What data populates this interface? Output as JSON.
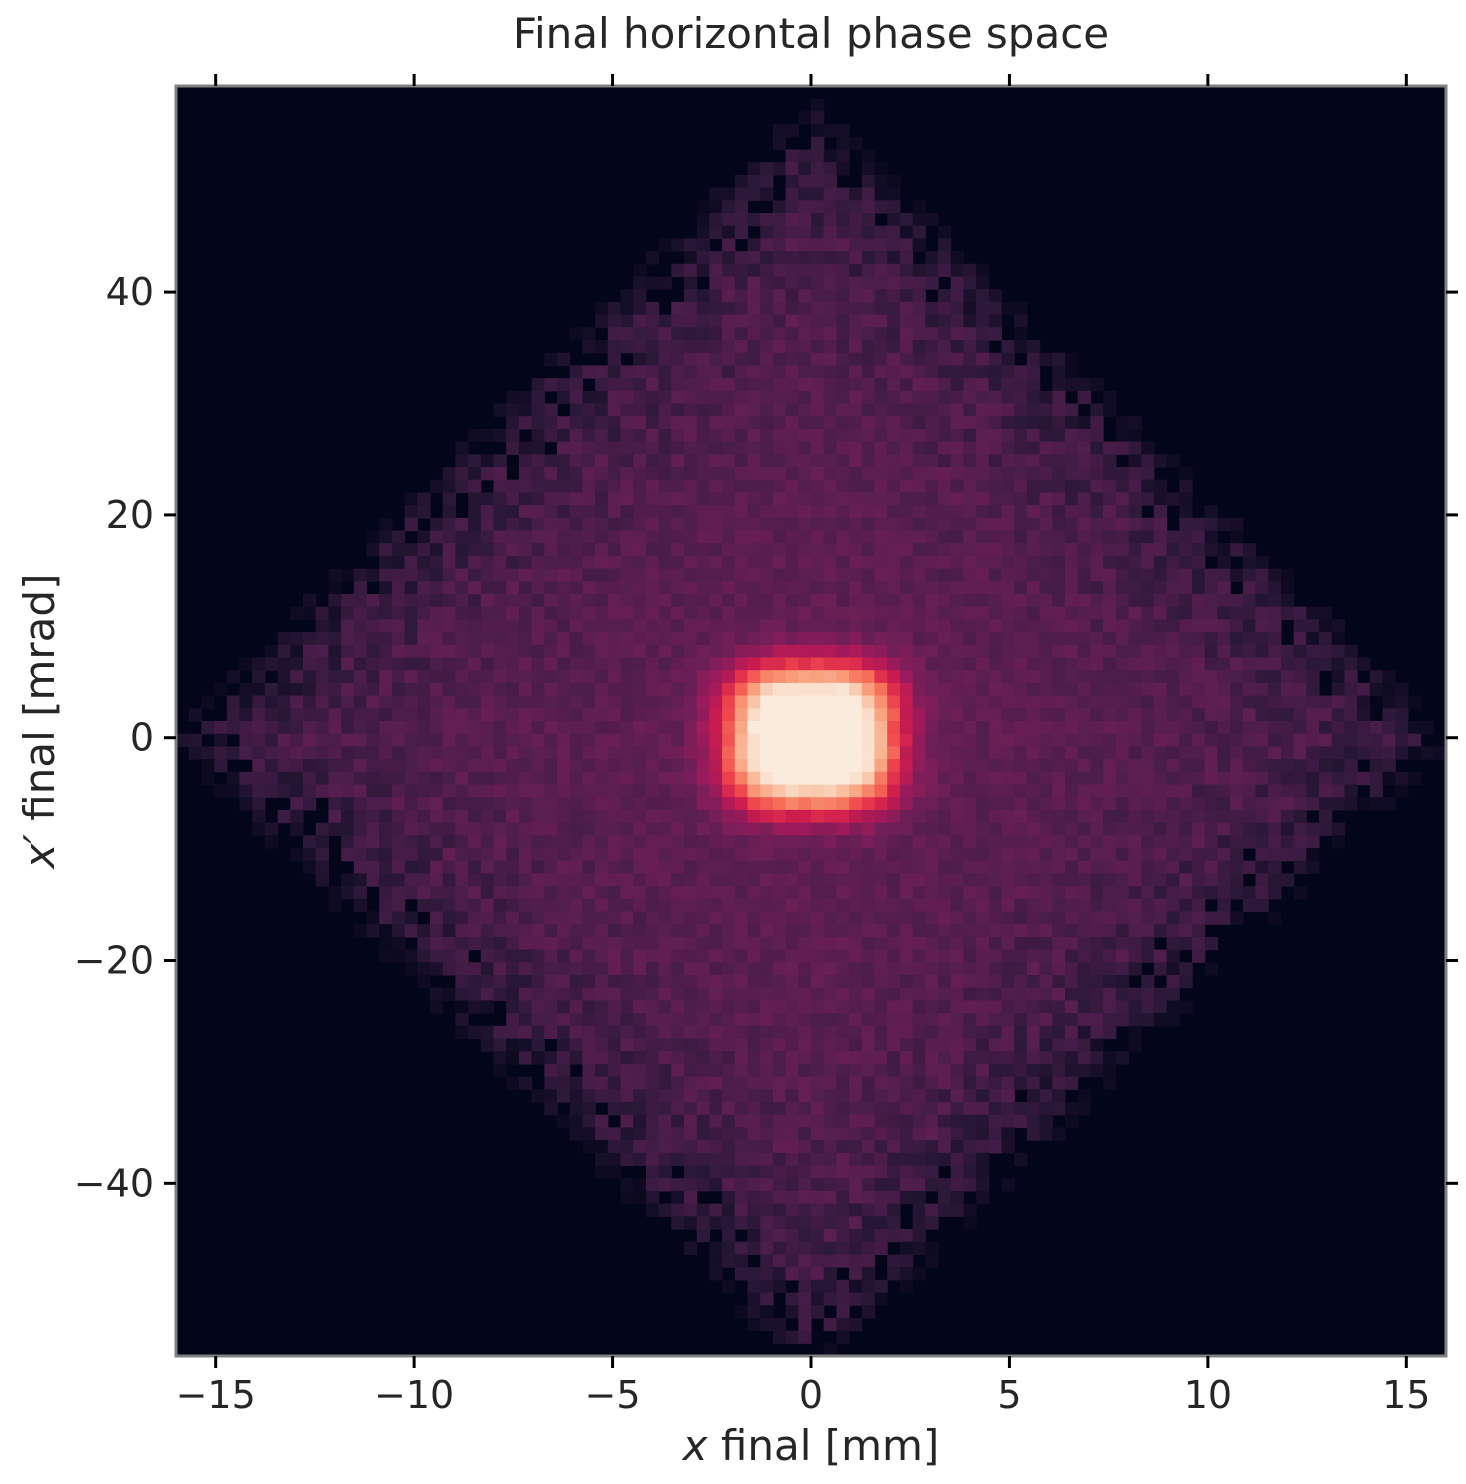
{
  "chart_data": {
    "type": "heatmap",
    "title": "Final horizontal phase space",
    "xlabel_var": "x",
    "xlabel_rest": " final [mm]",
    "ylabel_var": "x′",
    "ylabel_rest": " final [mrad]",
    "xlim": [
      -16,
      16
    ],
    "ylim": [
      -55.5,
      58.5
    ],
    "x_ticks": [
      -15,
      -10,
      -5,
      0,
      5,
      10,
      15
    ],
    "x_tick_labels": [
      "−15",
      "−10",
      "−5",
      "0",
      "5",
      "10",
      "15"
    ],
    "y_ticks": [
      40,
      20,
      0,
      -20,
      -40
    ],
    "y_tick_labels": [
      "40",
      "20",
      "0",
      "−20",
      "−40"
    ],
    "bins": [
      100,
      100
    ],
    "colormap": "rocket",
    "colormap_stops": [
      "#03051a",
      "#2b1838",
      "#4c1d4b",
      "#701f57",
      "#9f1a5b",
      "#cb1b4f",
      "#ec3c4a",
      "#f6705a",
      "#f9a27f",
      "#f9caaf",
      "#faebdd"
    ],
    "distribution": {
      "halo_shape": "diamond",
      "halo_half_width_x": 15.5,
      "halo_half_width_xp": 55,
      "core_center": [
        0,
        0
      ],
      "core_sigma_x": 1.4,
      "core_sigma_xp": 4.2,
      "core_peak_relative": 1.0,
      "halo_level_relative": 0.27
    },
    "grid": false
  }
}
